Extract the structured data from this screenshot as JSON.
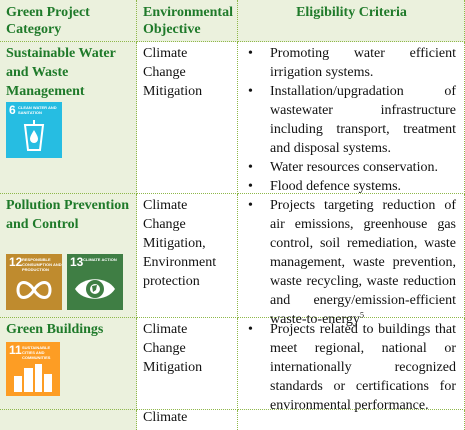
{
  "header": {
    "category": "Green Project Category",
    "objective": "Environmental Objective",
    "criteria": "Eligibility Criteria"
  },
  "rows": [
    {
      "category": "Sustainable Water and Waste Management",
      "objective": "Climate\nChange\nMitigation",
      "icons": [
        {
          "name": "sdg-6-clean-water-icon",
          "number": "6",
          "label": "CLEAN WATER AND SANITATION",
          "color": "#26bde2"
        }
      ],
      "criteria": [
        "Promoting water efficient irrigation systems.",
        "Installation/upgradation of wastewater infrastructure including transport, treatment and disposal systems.",
        "Water resources conservation.",
        "Flood defence systems."
      ]
    },
    {
      "category": "Pollution Prevention and Control",
      "objective": "Climate\nChange\nMitigation,\nEnvironment\nprotection",
      "icons": [
        {
          "name": "sdg-12-responsible-consumption-icon",
          "number": "12",
          "label": "RESPONSIBLE CONSUMPTION AND PRODUCTION",
          "color": "#bf8b2e"
        },
        {
          "name": "sdg-13-climate-action-icon",
          "number": "13",
          "label": "CLIMATE ACTION",
          "color": "#3f7e44"
        }
      ],
      "criteria": [
        "Projects targeting reduction of air emissions, greenhouse gas control, soil remediation, waste management, waste prevention, waste recycling, waste reduction and energy/emission-efficient waste-to-energy"
      ],
      "footnote": "5"
    },
    {
      "category": "Green Buildings",
      "objective": "Climate\nChange\nMitigation",
      "icons": [
        {
          "name": "sdg-11-sustainable-cities-icon",
          "number": "11",
          "label": "SUSTAINABLE CITIES AND COMMUNITIES",
          "color": "#fd9d24"
        }
      ],
      "criteria": [
        "Projects related to buildings that meet regional, national or internationally recognized standards or certifications for environmental performance."
      ]
    }
  ],
  "partial_next_row": {
    "objective_fragment": "Climate"
  },
  "colors": {
    "header_bg": "#ebf1dd",
    "green_text": "#1f7a2a",
    "border": "#8fb84a"
  }
}
